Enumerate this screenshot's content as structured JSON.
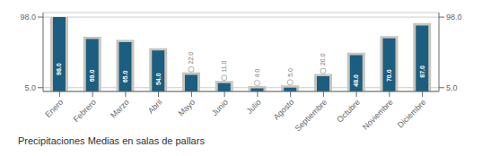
{
  "chart_data": {
    "type": "bar",
    "title": "Precipitaciones Medias en salas de pallars",
    "categories": [
      "Enero",
      "Febrero",
      "Marzo",
      "Abril",
      "Mayo",
      "Junio",
      "Julio",
      "Agosto",
      "Septiembre",
      "Octubre",
      "Noviembre",
      "Diciembre"
    ],
    "series": [
      {
        "color": "#c9c5bc",
        "values": [
          98,
          72,
          68,
          57,
          25,
          14,
          7,
          8,
          23,
          51,
          73,
          90
        ]
      },
      {
        "color": "#1b5e80",
        "values": [
          98,
          69,
          65,
          54,
          22,
          11,
          4,
          5,
          20,
          48,
          70,
          87
        ],
        "data_labels": true,
        "value_labels": [
          "98.0",
          "69.0",
          "65.0",
          "54.0",
          "22.0",
          "11.0",
          "4.0",
          "5.0",
          "20.0",
          "48.0",
          "70.0",
          "87.0"
        ]
      }
    ],
    "ylim": [
      0,
      104
    ],
    "yticks": [
      {
        "value": 5,
        "label": "5.0"
      },
      {
        "value": 98,
        "label": "98.0"
      }
    ],
    "grid": true
  }
}
